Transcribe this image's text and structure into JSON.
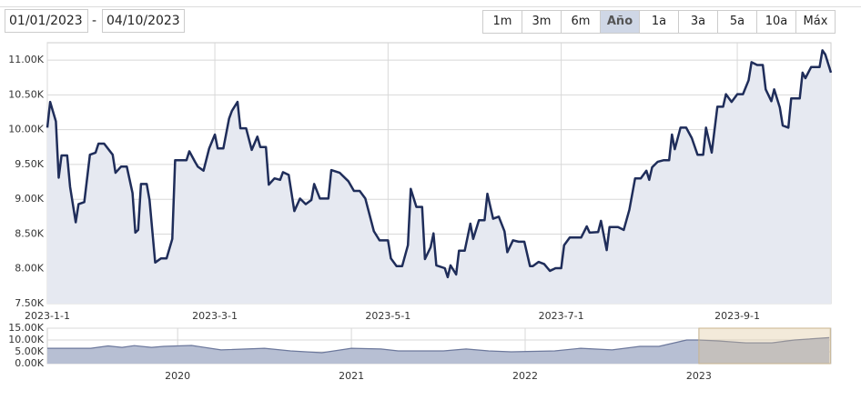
{
  "controls": {
    "date_from": "01/01/2023",
    "separator": "-",
    "date_to": "04/10/2023",
    "range_buttons": [
      "1m",
      "3m",
      "6m",
      "Año",
      "1a",
      "3a",
      "5a",
      "10a",
      "Máx"
    ],
    "selected_range": "Año"
  },
  "chart_data": [
    {
      "type": "area",
      "color": "#1f2d5a",
      "fill": "#e6e9f1",
      "grid": true,
      "x": [
        "2023-01-01",
        "2023-01-02",
        "2023-01-04",
        "2023-01-05",
        "2023-01-06",
        "2023-01-08",
        "2023-01-09",
        "2023-01-11",
        "2023-01-12",
        "2023-01-14",
        "2023-01-16",
        "2023-01-18",
        "2023-01-19",
        "2023-01-21",
        "2023-01-24",
        "2023-01-25",
        "2023-01-27",
        "2023-01-29",
        "2023-01-31",
        "2023-02-01",
        "2023-02-02",
        "2023-02-03",
        "2023-02-05",
        "2023-02-06",
        "2023-02-08",
        "2023-02-10",
        "2023-02-12",
        "2023-02-14",
        "2023-02-15",
        "2023-02-19",
        "2023-02-20",
        "2023-02-22",
        "2023-02-23",
        "2023-02-25",
        "2023-02-27",
        "2023-03-01",
        "2023-03-02",
        "2023-03-04",
        "2023-03-06",
        "2023-03-07",
        "2023-03-09",
        "2023-03-10",
        "2023-03-12",
        "2023-03-14",
        "2023-03-16",
        "2023-03-17",
        "2023-03-19",
        "2023-03-20",
        "2023-03-22",
        "2023-03-24",
        "2023-03-25",
        "2023-03-27",
        "2023-03-29",
        "2023-03-31",
        "2023-04-02",
        "2023-04-04",
        "2023-04-05",
        "2023-04-07",
        "2023-04-10",
        "2023-04-11",
        "2023-04-14",
        "2023-04-17",
        "2023-04-19",
        "2023-04-21",
        "2023-04-23",
        "2023-04-26",
        "2023-04-28",
        "2023-05-01",
        "2023-05-02",
        "2023-05-04",
        "2023-05-06",
        "2023-05-08",
        "2023-05-09",
        "2023-05-11",
        "2023-05-13",
        "2023-05-14",
        "2023-05-16",
        "2023-05-17",
        "2023-05-18",
        "2023-05-21",
        "2023-05-22",
        "2023-05-23",
        "2023-05-25",
        "2023-05-26",
        "2023-05-28",
        "2023-05-30",
        "2023-05-31",
        "2023-06-02",
        "2023-06-04",
        "2023-06-05",
        "2023-06-07",
        "2023-06-09",
        "2023-06-11",
        "2023-06-12",
        "2023-06-14",
        "2023-06-16",
        "2023-06-18",
        "2023-06-20",
        "2023-06-21",
        "2023-06-23",
        "2023-06-25",
        "2023-06-27",
        "2023-06-29",
        "2023-07-01",
        "2023-07-02",
        "2023-07-04",
        "2023-07-08",
        "2023-07-10",
        "2023-07-11",
        "2023-07-14",
        "2023-07-15",
        "2023-07-17",
        "2023-07-18",
        "2023-07-20",
        "2023-07-21",
        "2023-07-23",
        "2023-07-25",
        "2023-07-27",
        "2023-07-29",
        "2023-07-31",
        "2023-08-01",
        "2023-08-02",
        "2023-08-04",
        "2023-08-06",
        "2023-08-08",
        "2023-08-09",
        "2023-08-10",
        "2023-08-12",
        "2023-08-14",
        "2023-08-16",
        "2023-08-18",
        "2023-08-20",
        "2023-08-21",
        "2023-08-23",
        "2023-08-25",
        "2023-08-27",
        "2023-08-28",
        "2023-08-30",
        "2023-09-01",
        "2023-09-03",
        "2023-09-05",
        "2023-09-06",
        "2023-09-08",
        "2023-09-10",
        "2023-09-11",
        "2023-09-13",
        "2023-09-14",
        "2023-09-16",
        "2023-09-17",
        "2023-09-19",
        "2023-09-20",
        "2023-09-23",
        "2023-09-24",
        "2023-09-25",
        "2023-09-27",
        "2023-09-30",
        "2023-10-01",
        "2023-10-02",
        "2023-10-04"
      ],
      "values": [
        10030,
        10400,
        10120,
        9310,
        9630,
        9630,
        9180,
        8670,
        8930,
        8960,
        9640,
        9670,
        9800,
        9800,
        9640,
        9380,
        9470,
        9470,
        9090,
        8520,
        8560,
        9220,
        9220,
        8990,
        8090,
        8150,
        8150,
        8430,
        9560,
        9560,
        9690,
        9540,
        9470,
        9410,
        9730,
        9930,
        9730,
        9730,
        10160,
        10270,
        10400,
        10020,
        10020,
        9710,
        9900,
        9750,
        9750,
        9210,
        9300,
        9280,
        9390,
        9350,
        8830,
        9010,
        8930,
        8990,
        9220,
        9010,
        9010,
        9420,
        9380,
        9260,
        9120,
        9120,
        9010,
        8540,
        8410,
        8410,
        8150,
        8040,
        8040,
        8340,
        9150,
        8890,
        8890,
        8140,
        8310,
        8510,
        8050,
        8010,
        7880,
        8050,
        7920,
        8260,
        8260,
        8650,
        8430,
        8700,
        8700,
        9080,
        8720,
        8750,
        8540,
        8240,
        8410,
        8390,
        8390,
        8040,
        8040,
        8100,
        8070,
        7970,
        8010,
        8010,
        8340,
        8450,
        8450,
        8610,
        8520,
        8530,
        8690,
        8270,
        8600,
        8600,
        8600,
        8560,
        8850,
        9300,
        9300,
        9410,
        9280,
        9460,
        9540,
        9560,
        9560,
        9930,
        9720,
        10030,
        10030,
        9880,
        9640,
        9640,
        10030,
        9670,
        10330,
        10330,
        10510,
        10400,
        10510,
        10510,
        10710,
        10970,
        10930,
        10930,
        10580,
        10410,
        10580,
        10320,
        10060,
        10030,
        10450,
        10450,
        10820,
        10740,
        10900,
        10900,
        11140,
        11080,
        10820
      ],
      "xlim": [
        "2023-01-01",
        "2023-10-04"
      ],
      "xticks": [
        {
          "value": "2023-01-01",
          "label": "2023-1-1"
        },
        {
          "value": "2023-03-01",
          "label": "2023-3-1"
        },
        {
          "value": "2023-05-01",
          "label": "2023-5-1"
        },
        {
          "value": "2023-07-01",
          "label": "2023-7-1"
        },
        {
          "value": "2023-09-01",
          "label": "2023-9-1"
        }
      ],
      "ylim": [
        7500,
        11250
      ],
      "yticks": [
        {
          "value": 7500,
          "label": "7.50K"
        },
        {
          "value": 8000,
          "label": "8.00K"
        },
        {
          "value": 8500,
          "label": "8.50K"
        },
        {
          "value": 9000,
          "label": "9.00K"
        },
        {
          "value": 9500,
          "label": "9.50K"
        },
        {
          "value": 10000,
          "label": "10.00K"
        },
        {
          "value": 10500,
          "label": "10.50K"
        },
        {
          "value": 11000,
          "label": "11.00K"
        }
      ]
    },
    {
      "type": "area",
      "color": "#6c789c",
      "fill": "#b7bfd3",
      "grid": true,
      "x": [
        2019.25,
        2019.5,
        2019.6,
        2019.68,
        2019.75,
        2019.85,
        2019.92,
        2020.08,
        2020.25,
        2020.5,
        2020.65,
        2020.83,
        2021.0,
        2021.17,
        2021.27,
        2021.53,
        2021.66,
        2021.79,
        2021.92,
        2022.17,
        2022.32,
        2022.5,
        2022.66,
        2022.77,
        2022.93,
        2023.0,
        2023.11,
        2023.27,
        2023.42,
        2023.55,
        2023.75
      ],
      "values": [
        6500,
        6500,
        7500,
        6900,
        7600,
        6900,
        7300,
        7700,
        5800,
        6500,
        5400,
        4600,
        6500,
        6200,
        5400,
        5400,
        6200,
        5400,
        5000,
        5400,
        6500,
        5800,
        7300,
        7300,
        10000,
        10000,
        9600,
        8800,
        8800,
        10000,
        11000
      ],
      "xlim": [
        2019.25,
        2023.76
      ],
      "xticks": [
        2020,
        2021,
        2022,
        2023
      ],
      "ylim": [
        0,
        15000
      ],
      "yticks": [
        {
          "value": 0,
          "label": "0.00K"
        },
        {
          "value": 5000,
          "label": "5.00K"
        },
        {
          "value": 10000,
          "label": "10.00K"
        },
        {
          "value": 15000,
          "label": "15.00K"
        }
      ]
    }
  ]
}
